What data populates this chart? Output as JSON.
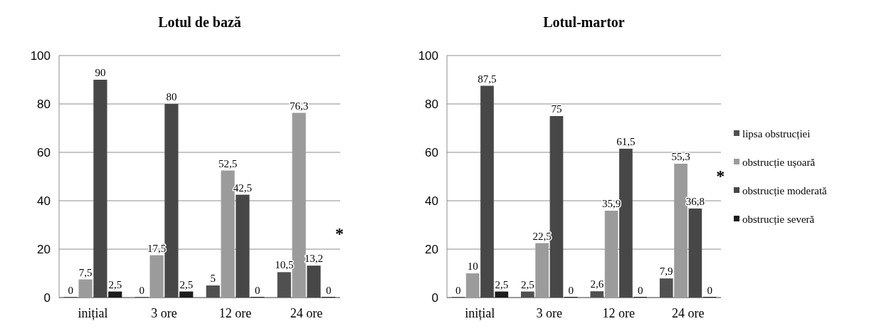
{
  "chart_data": [
    {
      "type": "bar",
      "title": "Lotul de bază",
      "categories": [
        "inițial",
        "3 ore",
        "12 ore",
        "24 ore"
      ],
      "ylim": [
        0,
        100
      ],
      "yticks": [
        0,
        20,
        40,
        60,
        80,
        100
      ],
      "grid": "y",
      "legend": false,
      "series": [
        {
          "color": "#505050",
          "values": [
            0,
            0,
            5,
            10.5
          ],
          "value_labels": [
            "0",
            "0",
            "5",
            "10,5"
          ]
        },
        {
          "color": "#9b9b9b",
          "values": [
            7.5,
            17.5,
            52.5,
            76.3
          ],
          "value_labels": [
            "7,5",
            "17,5",
            "52,5",
            "76,3"
          ]
        },
        {
          "color": "#474747",
          "values": [
            90,
            80,
            42.5,
            13.2
          ],
          "value_labels": [
            "90",
            "80",
            "42,5",
            "13,2"
          ]
        },
        {
          "color": "#1c1c1c",
          "values": [
            2.5,
            2.5,
            0,
            0
          ],
          "value_labels": [
            "2,5",
            "2,5",
            "0",
            "0"
          ]
        }
      ],
      "annotations": [
        {
          "text": "*",
          "x": "24 ore",
          "y": 24
        }
      ]
    },
    {
      "type": "bar",
      "title": "Lotul-martor",
      "categories": [
        "inițial",
        "3 ore",
        "12 ore",
        "24 ore"
      ],
      "ylim": [
        0,
        100
      ],
      "yticks": [
        0,
        20,
        40,
        60,
        80,
        100
      ],
      "grid": "y",
      "legend": "right",
      "series": [
        {
          "name": "lipsa obstrucției",
          "color": "#505050",
          "values": [
            0,
            2.5,
            2.6,
            7.9
          ],
          "value_labels": [
            "0",
            "2,5",
            "2,6",
            "7,9"
          ]
        },
        {
          "name": "obstrucție ușoară",
          "color": "#9b9b9b",
          "values": [
            10,
            22.5,
            35.9,
            55.3
          ],
          "value_labels": [
            "10",
            "22,5",
            "35,9",
            "55,3"
          ]
        },
        {
          "name": "obstrucție moderată",
          "color": "#474747",
          "values": [
            87.5,
            75,
            61.5,
            36.8
          ],
          "value_labels": [
            "87,5",
            "75",
            "61,5",
            "36,8"
          ]
        },
        {
          "name": "obstrucție severă",
          "color": "#1c1c1c",
          "values": [
            2.5,
            0,
            0,
            0
          ],
          "value_labels": [
            "2,5",
            "0",
            "0",
            "0"
          ]
        }
      ],
      "annotations": [
        {
          "text": "*",
          "x": "24 ore",
          "y": 48
        }
      ]
    }
  ]
}
